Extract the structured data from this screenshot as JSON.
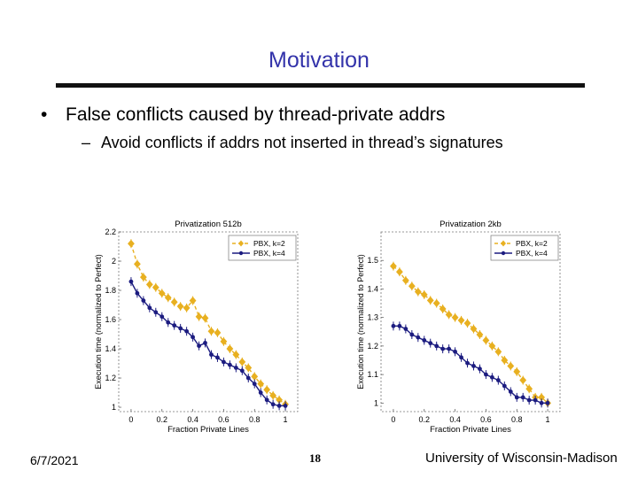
{
  "slide": {
    "title": "Motivation",
    "bullet": "False conflicts caused by thread-private addrs",
    "sub_bullet": "Avoid conflicts if addrs not inserted in thread’s signatures",
    "footer_date": "6/7/2021",
    "footer_page": "18",
    "footer_org": "University of Wisconsin-Madison"
  },
  "colors": {
    "title": "#3333aa",
    "series_k2": "#e8b020",
    "series_k4": "#1c1c80"
  },
  "chart_data": [
    {
      "type": "line",
      "title": "Privatization 512b",
      "xlabel": "Fraction Private Lines",
      "ylabel": "Execution time (normalized to Perfect)",
      "xlim": [
        -0.08,
        1.08
      ],
      "ylim": [
        0.97,
        2.2
      ],
      "xticks": [
        0,
        0.2,
        0.4,
        0.6,
        0.8,
        1
      ],
      "xtick_labels": [
        "0",
        "0.2",
        "0.4",
        "0.6",
        "0.8",
        "1"
      ],
      "yticks": [
        1,
        1.2,
        1.4,
        1.6,
        1.8,
        2,
        2.2
      ],
      "ytick_labels": [
        "1",
        "1.2",
        "1.4",
        "1.6",
        "1.8",
        "2",
        "2.2"
      ],
      "legend_position": "top-right",
      "grid": false,
      "x": [
        0,
        0.04,
        0.08,
        0.12,
        0.16,
        0.2,
        0.24,
        0.28,
        0.32,
        0.36,
        0.4,
        0.44,
        0.48,
        0.52,
        0.56,
        0.6,
        0.64,
        0.68,
        0.72,
        0.76,
        0.8,
        0.84,
        0.88,
        0.92,
        0.96,
        1
      ],
      "series": [
        {
          "name": "PBX, k=2",
          "style": "dashed",
          "marker": "diamond",
          "values": [
            2.12,
            1.98,
            1.89,
            1.84,
            1.82,
            1.78,
            1.75,
            1.72,
            1.69,
            1.68,
            1.73,
            1.62,
            1.61,
            1.52,
            1.51,
            1.45,
            1.4,
            1.36,
            1.31,
            1.27,
            1.21,
            1.16,
            1.12,
            1.08,
            1.05,
            1.02
          ]
        },
        {
          "name": "PBX, k=4",
          "style": "solid",
          "marker": "star",
          "values": [
            1.86,
            1.78,
            1.73,
            1.68,
            1.65,
            1.62,
            1.58,
            1.56,
            1.54,
            1.52,
            1.48,
            1.42,
            1.44,
            1.36,
            1.34,
            1.31,
            1.29,
            1.27,
            1.25,
            1.2,
            1.16,
            1.1,
            1.05,
            1.02,
            1.01,
            1.01
          ]
        }
      ]
    },
    {
      "type": "line",
      "title": "Privatization 2kb",
      "xlabel": "Fraction Private Lines",
      "ylabel": "Execution time (normalized to Perfect)",
      "xlim": [
        -0.08,
        1.08
      ],
      "ylim": [
        0.97,
        1.6
      ],
      "xticks": [
        0,
        0.2,
        0.4,
        0.6,
        0.8,
        1
      ],
      "xtick_labels": [
        "0",
        "0.2",
        "0.4",
        "0.6",
        "0.8",
        "1"
      ],
      "yticks": [
        1,
        1.1,
        1.2,
        1.3,
        1.4,
        1.5
      ],
      "ytick_labels": [
        "1",
        "1.1",
        "1.2",
        "1.3",
        "1.4",
        "1.5"
      ],
      "legend_position": "top-right",
      "grid": false,
      "x": [
        0,
        0.04,
        0.08,
        0.12,
        0.16,
        0.2,
        0.24,
        0.28,
        0.32,
        0.36,
        0.4,
        0.44,
        0.48,
        0.52,
        0.56,
        0.6,
        0.64,
        0.68,
        0.72,
        0.76,
        0.8,
        0.84,
        0.88,
        0.92,
        0.96,
        1
      ],
      "series": [
        {
          "name": "PBX, k=2",
          "style": "dashed",
          "marker": "diamond",
          "values": [
            1.48,
            1.46,
            1.43,
            1.41,
            1.39,
            1.38,
            1.36,
            1.35,
            1.33,
            1.31,
            1.3,
            1.29,
            1.28,
            1.26,
            1.24,
            1.22,
            1.2,
            1.18,
            1.15,
            1.13,
            1.11,
            1.08,
            1.05,
            1.02,
            1.02,
            1.0
          ]
        },
        {
          "name": "PBX, k=4",
          "style": "solid",
          "marker": "star",
          "values": [
            1.27,
            1.27,
            1.26,
            1.24,
            1.23,
            1.22,
            1.21,
            1.2,
            1.19,
            1.19,
            1.18,
            1.16,
            1.14,
            1.13,
            1.12,
            1.1,
            1.09,
            1.08,
            1.06,
            1.04,
            1.02,
            1.02,
            1.01,
            1.01,
            1.0,
            1.0
          ]
        }
      ]
    }
  ]
}
